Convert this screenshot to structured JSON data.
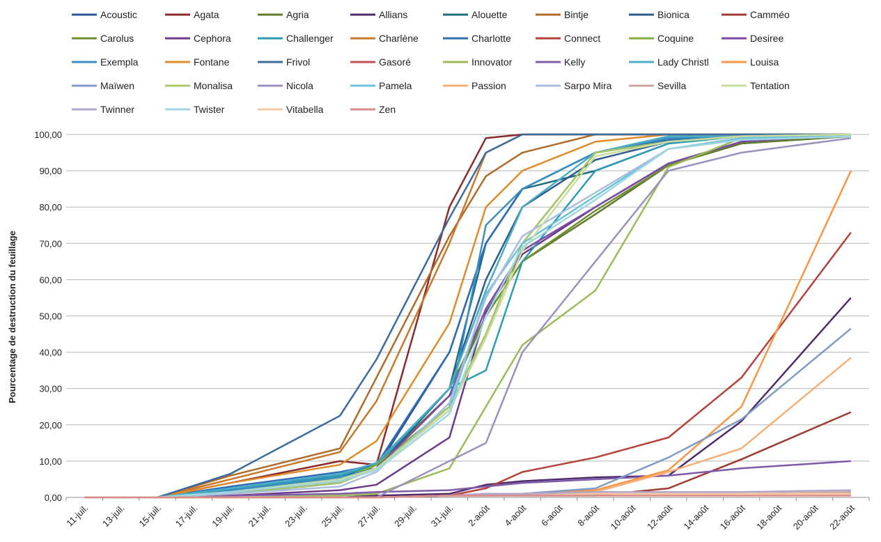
{
  "chart_data": {
    "type": "line",
    "title": "",
    "xlabel": "",
    "ylabel": "Pourcentage de destruction du feuillage",
    "ylim": [
      0,
      100
    ],
    "y_ticks": [
      "0,00",
      "10,00",
      "20,00",
      "30,00",
      "40,00",
      "50,00",
      "60,00",
      "70,00",
      "80,00",
      "90,00",
      "100,00"
    ],
    "x_ticks": [
      "11-juil.",
      "13-juil.",
      "15-juil.",
      "17-juil.",
      "19-juil.",
      "21-juil.",
      "23-juil.",
      "25-juil.",
      "27-juil.",
      "29-juil.",
      "31-juil.",
      "2-août",
      "4-août",
      "6-août",
      "8-août",
      "10-août",
      "12-août",
      "14-août",
      "16-août",
      "18-août",
      "20-août",
      "22-août"
    ],
    "grid": "horizontal",
    "legend_position": "top",
    "x_dates": [
      "11-juil.",
      "15-juil.",
      "19-juil.",
      "25-juil.",
      "27-juil.",
      "31-juil.",
      "2-août",
      "4-août",
      "8-août",
      "12-août",
      "16-août",
      "22-août"
    ],
    "series": [
      {
        "name": "Acoustic",
        "color": "#2f5597",
        "values": [
          0,
          0,
          2.5,
          6,
          8,
          40,
          70,
          85,
          95,
          98,
          99.5,
          100
        ]
      },
      {
        "name": "Agata",
        "color": "#8b2a2a",
        "values": [
          0,
          0,
          4,
          10,
          9,
          80,
          99,
          100,
          100,
          100,
          100,
          100
        ]
      },
      {
        "name": "Agria",
        "color": "#5e7a2a",
        "values": [
          0,
          0,
          1,
          4,
          9,
          28,
          50,
          65,
          78,
          91.5,
          97.5,
          99.5
        ]
      },
      {
        "name": "Allians",
        "color": "#4e2a6b",
        "values": [
          0,
          0,
          0,
          0,
          0.5,
          1,
          3.5,
          4.5,
          5.5,
          6,
          21,
          55
        ]
      },
      {
        "name": "Alouette",
        "color": "#1f6b80",
        "values": [
          0,
          0,
          2,
          5,
          8,
          30,
          70,
          85,
          90,
          97.5,
          99.5,
          100
        ]
      },
      {
        "name": "Bintje",
        "color": "#b06a2a",
        "values": [
          0,
          0,
          6,
          13.5,
          33,
          72,
          88.5,
          95,
          100,
          100,
          100,
          100
        ]
      },
      {
        "name": "Bionica",
        "color": "#2f5a8f",
        "values": [
          0,
          0,
          2,
          5,
          8,
          30,
          60,
          80,
          93,
          98,
          99.5,
          100
        ]
      },
      {
        "name": "Camméo",
        "color": "#a03a30",
        "values": [
          0,
          0,
          0,
          0,
          0,
          0.5,
          0.5,
          0.5,
          0.5,
          2.5,
          10.5,
          23.5
        ]
      },
      {
        "name": "Carolus",
        "color": "#6e8f2f",
        "values": [
          0,
          0,
          1.5,
          4.5,
          9,
          30,
          50,
          65,
          79,
          91.5,
          98,
          100
        ]
      },
      {
        "name": "Cephora",
        "color": "#6b3a8a",
        "values": [
          0,
          0,
          0.5,
          2,
          3.5,
          16.5,
          51,
          67,
          80,
          92,
          98,
          100
        ]
      },
      {
        "name": "Challenger",
        "color": "#2e9bb5",
        "values": [
          0,
          0,
          2,
          6,
          9,
          30,
          35,
          65,
          90,
          97.5,
          99.5,
          100
        ]
      },
      {
        "name": "Charlène",
        "color": "#c9772a",
        "values": [
          0,
          0,
          5,
          12.5,
          26.5,
          70,
          95,
          100,
          100,
          100,
          100,
          100
        ]
      },
      {
        "name": "Charlotte",
        "color": "#2e6db5",
        "values": [
          0,
          0,
          3,
          7,
          9,
          40,
          70,
          85,
          95,
          98.5,
          99.5,
          100
        ]
      },
      {
        "name": "Connect",
        "color": "#b5413a",
        "values": [
          0,
          0,
          0,
          0,
          0,
          0.5,
          2.5,
          7,
          11,
          16.5,
          33,
          73
        ]
      },
      {
        "name": "Coquine",
        "color": "#7fae3a",
        "values": [
          0,
          0,
          1.5,
          5,
          9,
          25,
          45,
          70,
          95,
          98,
          99.5,
          100
        ]
      },
      {
        "name": "Desiree",
        "color": "#7a4aa5",
        "values": [
          0,
          0,
          1,
          4,
          8,
          28,
          52,
          68,
          80,
          92,
          98,
          100
        ]
      },
      {
        "name": "Exempla",
        "color": "#3a8fc0",
        "values": [
          0,
          0,
          2,
          5.5,
          8,
          25,
          75,
          85,
          95,
          99,
          99.5,
          100
        ]
      },
      {
        "name": "Fontane",
        "color": "#e08a2a",
        "values": [
          0,
          0,
          4,
          9,
          15.5,
          48,
          80,
          90,
          98,
          100,
          100,
          100
        ]
      },
      {
        "name": "Frivol",
        "color": "#3a6aa0",
        "values": [
          0,
          0,
          6.5,
          22.5,
          38,
          77,
          95,
          100,
          100,
          100,
          100,
          100
        ]
      },
      {
        "name": "Gasoré",
        "color": "#c0504d",
        "values": [
          0,
          0,
          0,
          0,
          0,
          0.5,
          1,
          1,
          1,
          1,
          1,
          1
        ]
      },
      {
        "name": "Innovator",
        "color": "#9bbb59",
        "values": [
          0,
          0,
          0,
          0.5,
          1,
          8,
          25,
          42,
          57,
          91,
          99,
          100
        ]
      },
      {
        "name": "Kelly",
        "color": "#7e5aa8",
        "values": [
          0,
          0,
          0.5,
          1,
          1.5,
          2,
          3,
          4,
          5,
          6,
          8,
          10
        ]
      },
      {
        "name": "Lady Christl",
        "color": "#4bacc6",
        "values": [
          0,
          0,
          2.5,
          6.5,
          9.5,
          30,
          57,
          80,
          95,
          99.5,
          99.5,
          100
        ]
      },
      {
        "name": "Louisa",
        "color": "#f79646",
        "values": [
          0,
          0,
          0,
          0,
          0,
          0.5,
          0.5,
          1,
          2,
          7.5,
          25,
          90
        ]
      },
      {
        "name": "Maïwen",
        "color": "#7d9bc4",
        "values": [
          0,
          0,
          0,
          0,
          0,
          0.5,
          0.5,
          1,
          2.5,
          11,
          21.5,
          46.5
        ]
      },
      {
        "name": "Monalisa",
        "color": "#a8c66c",
        "values": [
          0,
          0,
          1,
          4,
          8,
          25,
          45,
          70,
          95,
          98,
          99.5,
          100
        ]
      },
      {
        "name": "Nicola",
        "color": "#9c8fc0",
        "values": [
          0,
          0,
          0,
          0,
          0,
          10,
          15,
          40,
          65,
          90,
          95,
          99
        ]
      },
      {
        "name": "Pamela",
        "color": "#6cc2d8",
        "values": [
          0,
          0,
          1.5,
          5,
          8,
          24,
          56,
          70,
          83,
          96,
          99,
          100
        ]
      },
      {
        "name": "Passion",
        "color": "#f5b07a",
        "values": [
          0,
          0,
          0,
          0,
          0,
          0.5,
          0.5,
          1,
          1.5,
          7,
          13.5,
          38.5
        ]
      },
      {
        "name": "Sarpo Mira",
        "color": "#a9bde0",
        "values": [
          0,
          0,
          1,
          3,
          7,
          26,
          55,
          72,
          84,
          96,
          98.5,
          99.5
        ]
      },
      {
        "name": "Sevilla",
        "color": "#c7a6a0",
        "values": [
          0,
          0,
          0,
          0,
          0,
          0.5,
          0.5,
          1,
          1,
          1,
          1,
          1.5
        ]
      },
      {
        "name": "Tentation",
        "color": "#c9dca0",
        "values": [
          0,
          0,
          1.5,
          5,
          8,
          24,
          44,
          68,
          94,
          98,
          99.5,
          100
        ]
      },
      {
        "name": "Twinner",
        "color": "#b2a6cc",
        "values": [
          0,
          0,
          0,
          0,
          0,
          0.5,
          1,
          1,
          1.5,
          1.5,
          1.5,
          2
        ]
      },
      {
        "name": "Twister",
        "color": "#9fd6e0",
        "values": [
          0,
          0,
          1.5,
          4.5,
          7.5,
          23,
          50,
          69,
          82,
          96,
          98.5,
          99.5
        ]
      },
      {
        "name": "Vitabella",
        "color": "#f8c8a0",
        "values": [
          0,
          0,
          0,
          0,
          0,
          0.5,
          0.5,
          0.5,
          1,
          1,
          1,
          1
        ]
      },
      {
        "name": "Zen",
        "color": "#d98c8a",
        "values": [
          0,
          0,
          0,
          0,
          0,
          0.5,
          0.5,
          0.5,
          0.5,
          0.5,
          0.5,
          0.5
        ]
      }
    ]
  }
}
